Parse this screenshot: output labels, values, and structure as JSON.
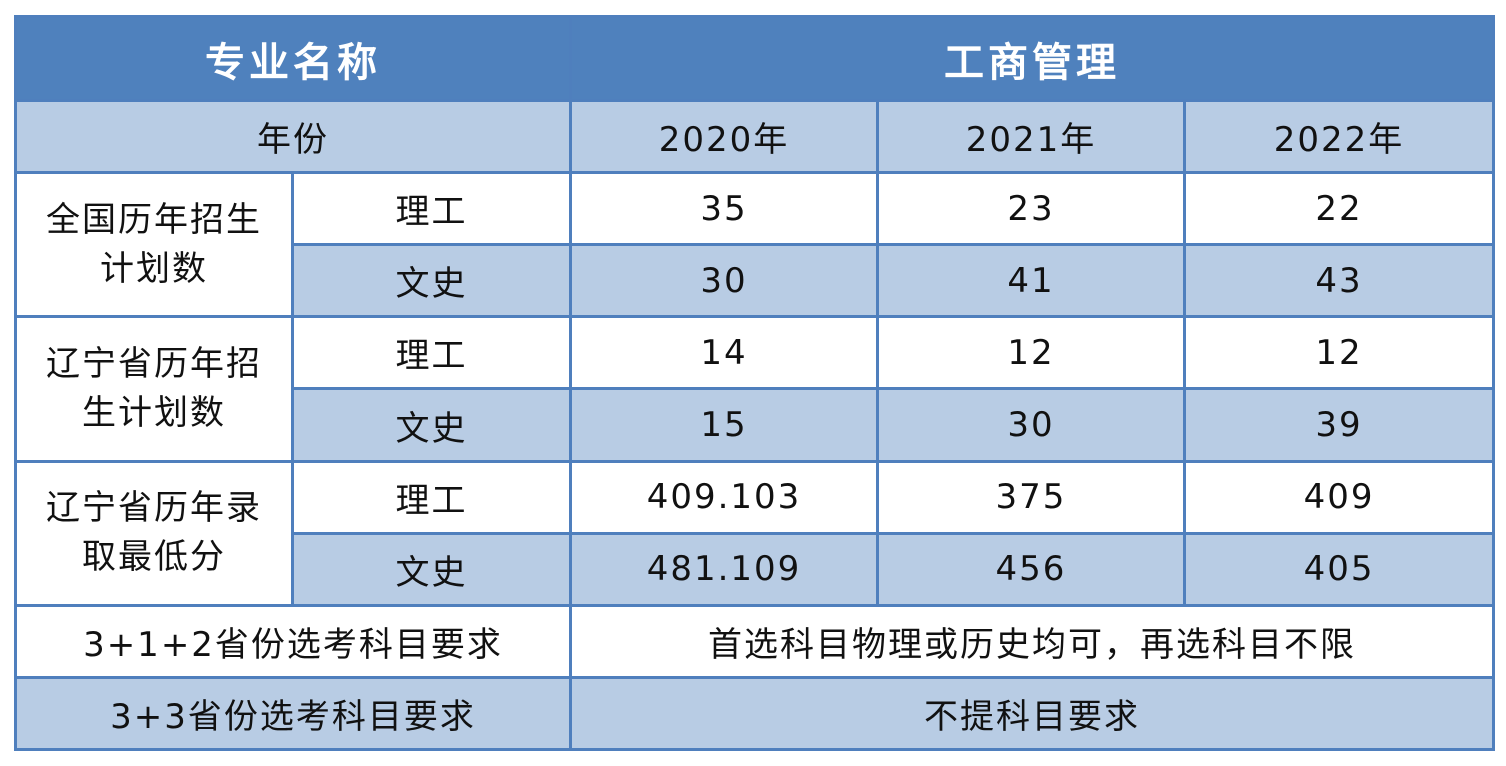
{
  "header": {
    "field_label": "专业名称",
    "major": "工商管理"
  },
  "years_row": {
    "label": "年份",
    "years": [
      "2020年",
      "2021年",
      "2022年"
    ]
  },
  "groups": [
    {
      "label_line1": "全国历年招生",
      "label_line2": "计划数",
      "rows": [
        {
          "category": "理工",
          "values": [
            "35",
            "23",
            "22"
          ]
        },
        {
          "category": "文史",
          "values": [
            "30",
            "41",
            "43"
          ]
        }
      ]
    },
    {
      "label_line1": "辽宁省历年招",
      "label_line2": "生计划数",
      "rows": [
        {
          "category": "理工",
          "values": [
            "14",
            "12",
            "12"
          ]
        },
        {
          "category": "文史",
          "values": [
            "15",
            "30",
            "39"
          ]
        }
      ]
    },
    {
      "label_line1": "辽宁省历年录",
      "label_line2": "取最低分",
      "rows": [
        {
          "category": "理工",
          "values": [
            "409.103",
            "375",
            "409"
          ]
        },
        {
          "category": "文史",
          "values": [
            "481.109",
            "456",
            "405"
          ]
        }
      ]
    }
  ],
  "requirements": [
    {
      "label": "3+1+2省份选考科目要求",
      "value": "首选科目物理或历史均可，再选科目不限"
    },
    {
      "label": "3+3省份选考科目要求",
      "value": "不提科目要求"
    }
  ],
  "colors": {
    "header_bg": "#4f81bd",
    "band_bg": "#b8cce4",
    "border": "#4f7fbd"
  }
}
